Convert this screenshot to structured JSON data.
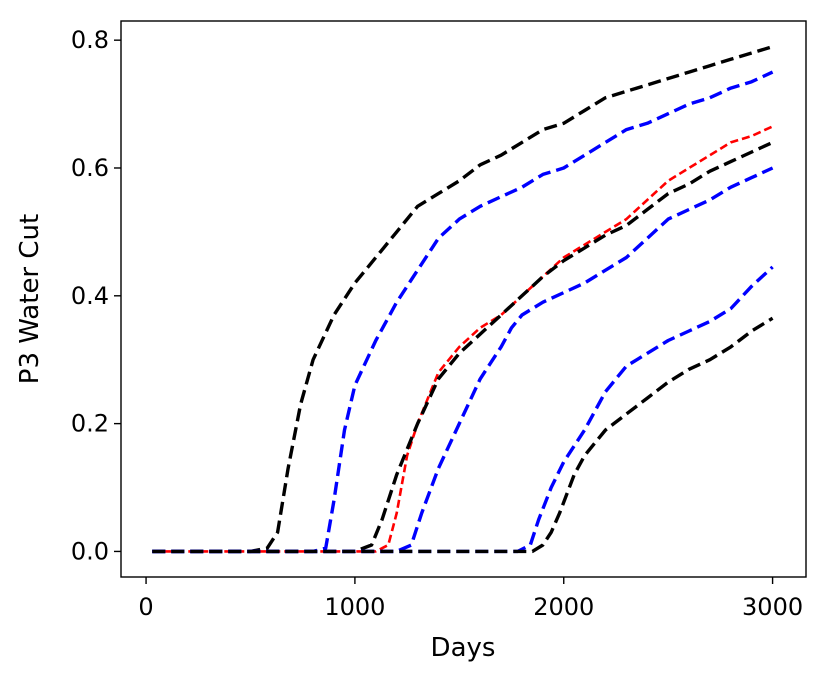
{
  "chart_data": {
    "type": "line",
    "title": "",
    "xlabel": "Days",
    "ylabel": "P3 Water Cut",
    "xlim": [
      -120,
      3160
    ],
    "ylim": [
      -0.04,
      0.83
    ],
    "xticks": [
      0,
      1000,
      2000,
      3000
    ],
    "xtick_labels": [
      "0",
      "1000",
      "2000",
      "3000"
    ],
    "yticks": [
      0.0,
      0.2,
      0.4,
      0.6,
      0.8
    ],
    "ytick_labels": [
      "0.0",
      "0.2",
      "0.4",
      "0.6",
      "0.8"
    ],
    "grid": false,
    "legend": "none",
    "series": [
      {
        "color": "#000000",
        "style": "dashed",
        "x": [
          30,
          500,
          580,
          630,
          680,
          740,
          800,
          900,
          1000,
          1100,
          1200,
          1300,
          1400,
          1500,
          1600,
          1700,
          1800,
          1900,
          2000,
          2100,
          2200,
          2300,
          2400,
          2500,
          2600,
          2700,
          2800,
          2900,
          3000
        ],
        "y": [
          0.0,
          0.0,
          0.005,
          0.03,
          0.13,
          0.23,
          0.3,
          0.37,
          0.42,
          0.46,
          0.5,
          0.54,
          0.56,
          0.58,
          0.605,
          0.62,
          0.64,
          0.66,
          0.67,
          0.69,
          0.71,
          0.72,
          0.73,
          0.74,
          0.75,
          0.76,
          0.77,
          0.78,
          0.79
        ]
      },
      {
        "color": "#0000ff",
        "style": "dashed",
        "x": [
          30,
          800,
          860,
          900,
          950,
          1000,
          1100,
          1200,
          1300,
          1400,
          1500,
          1600,
          1700,
          1800,
          1900,
          2000,
          2100,
          2200,
          2300,
          2400,
          2500,
          2600,
          2700,
          2800,
          2900,
          3000
        ],
        "y": [
          0.0,
          0.0,
          0.005,
          0.08,
          0.19,
          0.26,
          0.33,
          0.39,
          0.44,
          0.49,
          0.52,
          0.54,
          0.555,
          0.57,
          0.59,
          0.6,
          0.62,
          0.64,
          0.66,
          0.67,
          0.685,
          0.7,
          0.71,
          0.725,
          0.735,
          0.75
        ]
      },
      {
        "color": "#ff0000",
        "style": "dashed-thin",
        "x": [
          30,
          1100,
          1160,
          1200,
          1250,
          1300,
          1400,
          1500,
          1600,
          1700,
          1800,
          1900,
          2000,
          2100,
          2200,
          2300,
          2400,
          2500,
          2600,
          2700,
          2800,
          2900,
          3000
        ],
        "y": [
          0.0,
          0.0,
          0.01,
          0.06,
          0.15,
          0.2,
          0.28,
          0.32,
          0.35,
          0.37,
          0.4,
          0.43,
          0.46,
          0.48,
          0.5,
          0.52,
          0.55,
          0.58,
          0.6,
          0.62,
          0.64,
          0.65,
          0.665
        ]
      },
      {
        "color": "#000000",
        "style": "dashed",
        "x": [
          30,
          1000,
          1080,
          1130,
          1200,
          1300,
          1400,
          1500,
          1600,
          1700,
          1800,
          1900,
          2000,
          2100,
          2200,
          2300,
          2400,
          2500,
          2600,
          2700,
          2800,
          2900,
          3000
        ],
        "y": [
          0.0,
          0.0,
          0.01,
          0.05,
          0.12,
          0.2,
          0.27,
          0.31,
          0.34,
          0.37,
          0.4,
          0.43,
          0.455,
          0.475,
          0.495,
          0.51,
          0.535,
          0.56,
          0.575,
          0.595,
          0.61,
          0.625,
          0.64
        ]
      },
      {
        "color": "#0000ff",
        "style": "dashed",
        "x": [
          30,
          1200,
          1270,
          1320,
          1400,
          1500,
          1600,
          1700,
          1750,
          1800,
          1900,
          2000,
          2100,
          2200,
          2300,
          2400,
          2500,
          2600,
          2700,
          2800,
          2900,
          3000
        ],
        "y": [
          0.0,
          0.0,
          0.01,
          0.06,
          0.13,
          0.2,
          0.27,
          0.32,
          0.35,
          0.37,
          0.39,
          0.405,
          0.42,
          0.44,
          0.46,
          0.49,
          0.52,
          0.535,
          0.55,
          0.57,
          0.585,
          0.6
        ]
      },
      {
        "color": "#0000ff",
        "style": "dashed",
        "x": [
          30,
          1780,
          1840,
          1880,
          1940,
          2000,
          2100,
          2200,
          2300,
          2400,
          2500,
          2600,
          2700,
          2800,
          2900,
          3000
        ],
        "y": [
          0.0,
          0.0,
          0.01,
          0.05,
          0.1,
          0.14,
          0.19,
          0.25,
          0.29,
          0.31,
          0.33,
          0.345,
          0.36,
          0.38,
          0.415,
          0.445
        ]
      },
      {
        "color": "#000000",
        "style": "dashed",
        "x": [
          30,
          1850,
          1900,
          1940,
          1980,
          2050,
          2100,
          2200,
          2300,
          2400,
          2500,
          2600,
          2700,
          2800,
          2900,
          3000
        ],
        "y": [
          0.0,
          0.0,
          0.01,
          0.03,
          0.06,
          0.12,
          0.15,
          0.19,
          0.215,
          0.24,
          0.265,
          0.285,
          0.3,
          0.32,
          0.345,
          0.365
        ]
      }
    ]
  }
}
